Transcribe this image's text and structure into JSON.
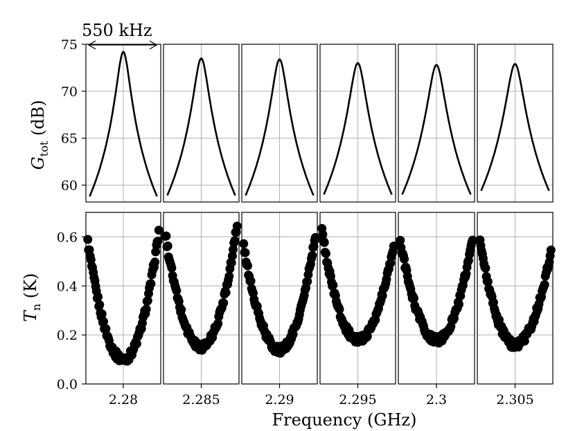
{
  "chart_data": {
    "type": "line+scatter",
    "panel_span_khz": 550,
    "annotation": "550 kHz",
    "xlabel": "Frequency (GHz)",
    "xtick_labels": [
      "2.28",
      "2.285",
      "2.29",
      "2.295",
      "2.3",
      "2.305"
    ],
    "top": {
      "ylabel_main": "G",
      "ylabel_sub": "tot",
      "ylabel_unit": " (dB)",
      "ylim": [
        58.2,
        75
      ],
      "yticks": [
        60,
        65,
        70,
        75
      ],
      "ytick_labels": [
        "60",
        "65",
        "70",
        "75"
      ],
      "grid": true,
      "series": [
        {
          "center_ghz": 2.28,
          "peak_db": 74.2,
          "edge_db": 58.8
        },
        {
          "center_ghz": 2.285,
          "peak_db": 73.5,
          "edge_db": 58.9
        },
        {
          "center_ghz": 2.29,
          "peak_db": 73.4,
          "edge_db": 58.9
        },
        {
          "center_ghz": 2.295,
          "peak_db": 73.0,
          "edge_db": 59.0
        },
        {
          "center_ghz": 2.3,
          "peak_db": 72.8,
          "edge_db": 59.0
        },
        {
          "center_ghz": 2.305,
          "peak_db": 72.9,
          "edge_db": 59.4
        }
      ]
    },
    "bottom": {
      "ylabel_main": "T",
      "ylabel_sub": "n",
      "ylabel_unit": " (K)",
      "ylim": [
        0.0,
        0.7
      ],
      "yticks": [
        0.0,
        0.2,
        0.4,
        0.6
      ],
      "ytick_labels": [
        "0.0",
        "0.2",
        "0.4",
        "0.6"
      ],
      "grid": true,
      "series": [
        {
          "center_ghz": 2.28,
          "min_k": 0.1,
          "left_k": 0.58,
          "right_k": 0.62
        },
        {
          "center_ghz": 2.285,
          "min_k": 0.15,
          "left_k": 0.61,
          "right_k": 0.65
        },
        {
          "center_ghz": 2.29,
          "min_k": 0.14,
          "left_k": 0.56,
          "right_k": 0.61
        },
        {
          "center_ghz": 2.295,
          "min_k": 0.18,
          "left_k": 0.62,
          "right_k": 0.57
        },
        {
          "center_ghz": 2.3,
          "min_k": 0.18,
          "left_k": 0.58,
          "right_k": 0.59
        },
        {
          "center_ghz": 2.305,
          "min_k": 0.16,
          "left_k": 0.6,
          "right_k": 0.54
        }
      ]
    }
  }
}
